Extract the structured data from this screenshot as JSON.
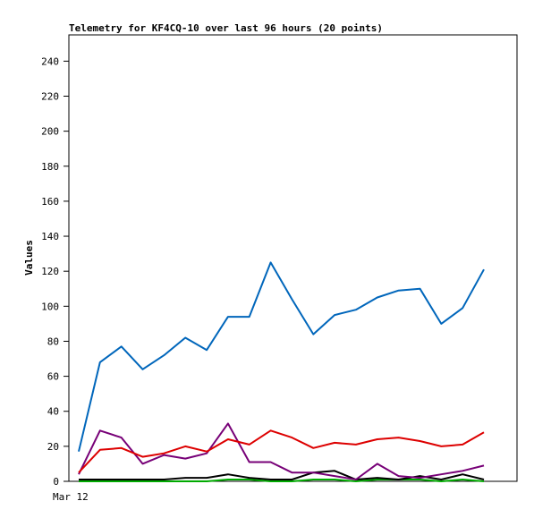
{
  "chart_data": {
    "type": "line",
    "title": "Telemetry for KF4CQ-10 over last 96 hours (20 points)",
    "xlabel": "",
    "ylabel": "Values",
    "x_tick_labels": [
      "Mar 12"
    ],
    "ylim": [
      0,
      255
    ],
    "y_ticks": [
      0,
      20,
      40,
      60,
      80,
      100,
      120,
      140,
      160,
      180,
      200,
      220,
      240
    ],
    "grid": false,
    "legend": "none",
    "series": [
      {
        "color": "#0066bb",
        "values": [
          17,
          68,
          77,
          64,
          72,
          82,
          75,
          94,
          94,
          125,
          104,
          84,
          95,
          98,
          105,
          109,
          110,
          90,
          99,
          121
        ]
      },
      {
        "color": "#dd0000",
        "values": [
          5,
          18,
          19,
          14,
          16,
          20,
          17,
          24,
          21,
          29,
          25,
          19,
          22,
          21,
          24,
          25,
          23,
          20,
          21,
          28
        ]
      },
      {
        "color": "#770077",
        "values": [
          4,
          29,
          25,
          10,
          15,
          13,
          16,
          33,
          11,
          11,
          5,
          5,
          3,
          1,
          10,
          3,
          2,
          4,
          6,
          9
        ]
      },
      {
        "color": "#000000",
        "values": [
          1,
          1,
          1,
          1,
          1,
          2,
          2,
          4,
          2,
          1,
          1,
          5,
          6,
          1,
          2,
          1,
          3,
          1,
          4,
          1
        ]
      },
      {
        "color": "#00aa00",
        "values": [
          0,
          0,
          0,
          0,
          0,
          0,
          0,
          1,
          1,
          0,
          0,
          1,
          1,
          0,
          1,
          1,
          1,
          0,
          1,
          0
        ]
      }
    ]
  }
}
